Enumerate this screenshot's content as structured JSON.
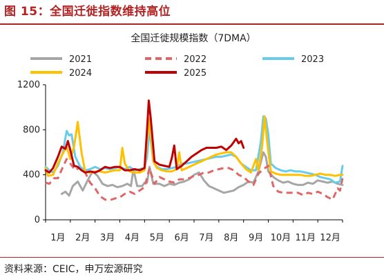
{
  "figure": {
    "title": "图 15：全国迁徙指数维持高位",
    "source": "资料来源：CEIC，申万宏源研究"
  },
  "chart_data": {
    "type": "line",
    "title": "全国迁徙规模指数（7DMA）",
    "xlabel": "",
    "ylabel": "",
    "ylim": [
      0,
      1200
    ],
    "yticks": [
      0,
      400,
      800,
      1200
    ],
    "xlim": [
      1,
      13
    ],
    "month_labels": [
      "1月",
      "2月",
      "3月",
      "4月",
      "5月",
      "6月",
      "7月",
      "8月",
      "9月",
      "10月",
      "11月",
      "12月"
    ],
    "legend_placement": "top",
    "grid": false,
    "series": [
      {
        "name": "2021",
        "color": "#a6a6a6",
        "dash": "solid",
        "points": [
          [
            1.65,
            230
          ],
          [
            1.8,
            250
          ],
          [
            1.95,
            215
          ],
          [
            2.1,
            300
          ],
          [
            2.3,
            340
          ],
          [
            2.5,
            260
          ],
          [
            2.7,
            350
          ],
          [
            2.9,
            430
          ],
          [
            3.1,
            390
          ],
          [
            3.3,
            320
          ],
          [
            3.5,
            300
          ],
          [
            3.7,
            310
          ],
          [
            3.9,
            290
          ],
          [
            4.1,
            300
          ],
          [
            4.3,
            320
          ],
          [
            4.45,
            300
          ],
          [
            4.55,
            450
          ],
          [
            4.7,
            300
          ],
          [
            4.9,
            300
          ],
          [
            5.0,
            330
          ],
          [
            5.1,
            330
          ],
          [
            5.2,
            470
          ],
          [
            5.35,
            320
          ],
          [
            5.6,
            320
          ],
          [
            5.8,
            300
          ],
          [
            6.0,
            320
          ],
          [
            6.2,
            310
          ],
          [
            6.4,
            330
          ],
          [
            6.6,
            340
          ],
          [
            6.8,
            360
          ],
          [
            7.0,
            400
          ],
          [
            7.2,
            420
          ],
          [
            7.4,
            350
          ],
          [
            7.6,
            300
          ],
          [
            7.8,
            280
          ],
          [
            8.0,
            260
          ],
          [
            8.2,
            240
          ],
          [
            8.4,
            250
          ],
          [
            8.6,
            260
          ],
          [
            8.8,
            290
          ],
          [
            9.0,
            310
          ],
          [
            9.2,
            340
          ],
          [
            9.4,
            330
          ],
          [
            9.6,
            430
          ],
          [
            9.8,
            600
          ],
          [
            9.9,
            560
          ],
          [
            10.0,
            430
          ],
          [
            10.2,
            380
          ],
          [
            10.4,
            350
          ],
          [
            10.6,
            330
          ],
          [
            10.8,
            340
          ],
          [
            11.0,
            320
          ],
          [
            11.2,
            310
          ],
          [
            11.4,
            310
          ],
          [
            11.6,
            330
          ],
          [
            11.8,
            320
          ],
          [
            12.0,
            350
          ],
          [
            12.2,
            340
          ],
          [
            12.4,
            330
          ],
          [
            12.6,
            340
          ],
          [
            12.8,
            320
          ],
          [
            13.0,
            310
          ]
        ]
      },
      {
        "name": "2022",
        "color": "#e06666",
        "dash": "dashed",
        "points": [
          [
            1.0,
            330
          ],
          [
            1.15,
            320
          ],
          [
            1.35,
            370
          ],
          [
            1.5,
            370
          ],
          [
            1.7,
            470
          ],
          [
            1.85,
            540
          ],
          [
            2.0,
            500
          ],
          [
            2.2,
            440
          ],
          [
            2.4,
            470
          ],
          [
            2.6,
            420
          ],
          [
            2.8,
            330
          ],
          [
            3.0,
            280
          ],
          [
            3.2,
            210
          ],
          [
            3.4,
            180
          ],
          [
            3.6,
            175
          ],
          [
            3.8,
            190
          ],
          [
            4.0,
            200
          ],
          [
            4.2,
            230
          ],
          [
            4.4,
            250
          ],
          [
            4.6,
            230
          ],
          [
            4.8,
            260
          ],
          [
            5.0,
            290
          ],
          [
            5.2,
            460
          ],
          [
            5.4,
            320
          ],
          [
            5.6,
            380
          ],
          [
            5.8,
            360
          ],
          [
            6.0,
            340
          ],
          [
            6.2,
            330
          ],
          [
            6.4,
            360
          ],
          [
            6.6,
            360
          ],
          [
            6.8,
            370
          ],
          [
            7.0,
            390
          ],
          [
            7.2,
            400
          ],
          [
            7.4,
            420
          ],
          [
            7.6,
            420
          ],
          [
            7.8,
            440
          ],
          [
            8.0,
            450
          ],
          [
            8.2,
            460
          ],
          [
            8.4,
            460
          ],
          [
            8.6,
            440
          ],
          [
            8.8,
            400
          ],
          [
            9.0,
            380
          ],
          [
            9.2,
            340
          ],
          [
            9.4,
            310
          ],
          [
            9.6,
            410
          ],
          [
            9.8,
            450
          ],
          [
            10.0,
            480
          ],
          [
            10.2,
            300
          ],
          [
            10.4,
            250
          ],
          [
            10.6,
            240
          ],
          [
            10.8,
            240
          ],
          [
            11.0,
            240
          ],
          [
            11.2,
            240
          ],
          [
            11.4,
            220
          ],
          [
            11.6,
            240
          ],
          [
            11.8,
            230
          ],
          [
            12.0,
            250
          ],
          [
            12.2,
            230
          ],
          [
            12.4,
            200
          ],
          [
            12.6,
            180
          ],
          [
            12.8,
            280
          ],
          [
            12.9,
            260
          ],
          [
            13.0,
            370
          ]
        ]
      },
      {
        "name": "2023",
        "color": "#66ccee",
        "dash": "solid",
        "points": [
          [
            1.0,
            470
          ],
          [
            1.15,
            440
          ],
          [
            1.3,
            420
          ],
          [
            1.5,
            480
          ],
          [
            1.7,
            600
          ],
          [
            1.85,
            790
          ],
          [
            1.95,
            750
          ],
          [
            2.05,
            760
          ],
          [
            2.2,
            560
          ],
          [
            2.4,
            470
          ],
          [
            2.6,
            440
          ],
          [
            2.8,
            450
          ],
          [
            3.0,
            470
          ],
          [
            3.2,
            450
          ],
          [
            3.4,
            460
          ],
          [
            3.6,
            450
          ],
          [
            3.8,
            460
          ],
          [
            4.0,
            470
          ],
          [
            4.2,
            450
          ],
          [
            4.4,
            470
          ],
          [
            4.6,
            440
          ],
          [
            4.8,
            450
          ],
          [
            5.0,
            460
          ],
          [
            5.1,
            560
          ],
          [
            5.2,
            800
          ],
          [
            5.35,
            520
          ],
          [
            5.5,
            470
          ],
          [
            5.7,
            450
          ],
          [
            5.9,
            450
          ],
          [
            6.1,
            460
          ],
          [
            6.3,
            470
          ],
          [
            6.5,
            500
          ],
          [
            6.7,
            500
          ],
          [
            6.9,
            510
          ],
          [
            7.1,
            520
          ],
          [
            7.3,
            530
          ],
          [
            7.5,
            540
          ],
          [
            7.7,
            550
          ],
          [
            7.9,
            560
          ],
          [
            8.1,
            560
          ],
          [
            8.3,
            570
          ],
          [
            8.5,
            580
          ],
          [
            8.7,
            560
          ],
          [
            8.9,
            500
          ],
          [
            9.1,
            470
          ],
          [
            9.3,
            440
          ],
          [
            9.5,
            440
          ],
          [
            9.7,
            700
          ],
          [
            9.8,
            920
          ],
          [
            9.9,
            900
          ],
          [
            10.0,
            760
          ],
          [
            10.1,
            500
          ],
          [
            10.3,
            460
          ],
          [
            10.5,
            440
          ],
          [
            10.7,
            430
          ],
          [
            10.9,
            440
          ],
          [
            11.1,
            430
          ],
          [
            11.3,
            430
          ],
          [
            11.5,
            420
          ],
          [
            11.7,
            410
          ],
          [
            11.9,
            400
          ],
          [
            12.1,
            380
          ],
          [
            12.3,
            370
          ],
          [
            12.5,
            360
          ],
          [
            12.7,
            330
          ],
          [
            12.9,
            340
          ],
          [
            13.0,
            480
          ]
        ]
      },
      {
        "name": "2024",
        "color": "#ffc000",
        "dash": "solid",
        "points": [
          [
            1.0,
            460
          ],
          [
            1.1,
            390
          ],
          [
            1.3,
            400
          ],
          [
            1.5,
            500
          ],
          [
            1.7,
            590
          ],
          [
            1.85,
            650
          ],
          [
            2.0,
            540
          ],
          [
            2.15,
            650
          ],
          [
            2.3,
            870
          ],
          [
            2.45,
            600
          ],
          [
            2.6,
            430
          ],
          [
            2.8,
            420
          ],
          [
            3.0,
            430
          ],
          [
            3.2,
            430
          ],
          [
            3.4,
            420
          ],
          [
            3.6,
            430
          ],
          [
            3.8,
            440
          ],
          [
            4.0,
            440
          ],
          [
            4.1,
            640
          ],
          [
            4.2,
            500
          ],
          [
            4.4,
            430
          ],
          [
            4.6,
            420
          ],
          [
            4.8,
            420
          ],
          [
            5.0,
            440
          ],
          [
            5.1,
            700
          ],
          [
            5.2,
            900
          ],
          [
            5.35,
            520
          ],
          [
            5.5,
            460
          ],
          [
            5.7,
            440
          ],
          [
            5.9,
            430
          ],
          [
            6.1,
            430
          ],
          [
            6.3,
            450
          ],
          [
            6.4,
            600
          ],
          [
            6.5,
            440
          ],
          [
            6.7,
            460
          ],
          [
            6.9,
            480
          ],
          [
            7.1,
            500
          ],
          [
            7.3,
            520
          ],
          [
            7.5,
            540
          ],
          [
            7.7,
            560
          ],
          [
            7.9,
            580
          ],
          [
            8.1,
            590
          ],
          [
            8.3,
            600
          ],
          [
            8.5,
            600
          ],
          [
            8.7,
            560
          ],
          [
            8.9,
            500
          ],
          [
            9.1,
            450
          ],
          [
            9.3,
            420
          ],
          [
            9.5,
            540
          ],
          [
            9.6,
            440
          ],
          [
            9.75,
            650
          ],
          [
            9.85,
            920
          ],
          [
            9.95,
            700
          ],
          [
            10.1,
            430
          ],
          [
            10.3,
            410
          ],
          [
            10.5,
            400
          ],
          [
            10.7,
            400
          ],
          [
            10.9,
            400
          ],
          [
            11.1,
            400
          ],
          [
            11.3,
            400
          ],
          [
            11.5,
            390
          ],
          [
            11.7,
            390
          ],
          [
            11.9,
            400
          ],
          [
            12.1,
            410
          ],
          [
            12.3,
            400
          ],
          [
            12.5,
            400
          ],
          [
            12.7,
            390
          ],
          [
            12.9,
            400
          ],
          [
            13.0,
            400
          ]
        ]
      },
      {
        "name": "2025",
        "color": "#c00000",
        "dash": "solid",
        "points": [
          [
            1.0,
            440
          ],
          [
            1.15,
            420
          ],
          [
            1.3,
            460
          ],
          [
            1.5,
            560
          ],
          [
            1.65,
            650
          ],
          [
            1.8,
            630
          ],
          [
            1.9,
            700
          ],
          [
            2.0,
            620
          ],
          [
            2.15,
            480
          ],
          [
            2.3,
            470
          ],
          [
            2.45,
            440
          ],
          [
            2.6,
            420
          ],
          [
            2.8,
            430
          ],
          [
            3.0,
            420
          ],
          [
            3.2,
            440
          ],
          [
            3.4,
            470
          ],
          [
            3.6,
            460
          ],
          [
            3.8,
            470
          ],
          [
            4.0,
            470
          ],
          [
            4.2,
            440
          ],
          [
            4.4,
            440
          ],
          [
            4.6,
            450
          ],
          [
            4.8,
            440
          ],
          [
            5.0,
            460
          ],
          [
            5.1,
            800
          ],
          [
            5.17,
            1060
          ],
          [
            5.25,
            900
          ],
          [
            5.4,
            520
          ],
          [
            5.6,
            490
          ],
          [
            5.8,
            480
          ],
          [
            6.0,
            470
          ],
          [
            6.1,
            550
          ],
          [
            6.2,
            660
          ],
          [
            6.3,
            450
          ],
          [
            6.5,
            480
          ],
          [
            6.7,
            520
          ],
          [
            6.9,
            560
          ],
          [
            7.1,
            590
          ],
          [
            7.3,
            620
          ],
          [
            7.5,
            640
          ],
          [
            7.7,
            640
          ],
          [
            7.9,
            640
          ],
          [
            8.1,
            650
          ],
          [
            8.3,
            620
          ],
          [
            8.5,
            660
          ],
          [
            8.7,
            720
          ],
          [
            8.8,
            680
          ],
          [
            8.9,
            700
          ],
          [
            9.0,
            640
          ]
        ]
      }
    ]
  }
}
